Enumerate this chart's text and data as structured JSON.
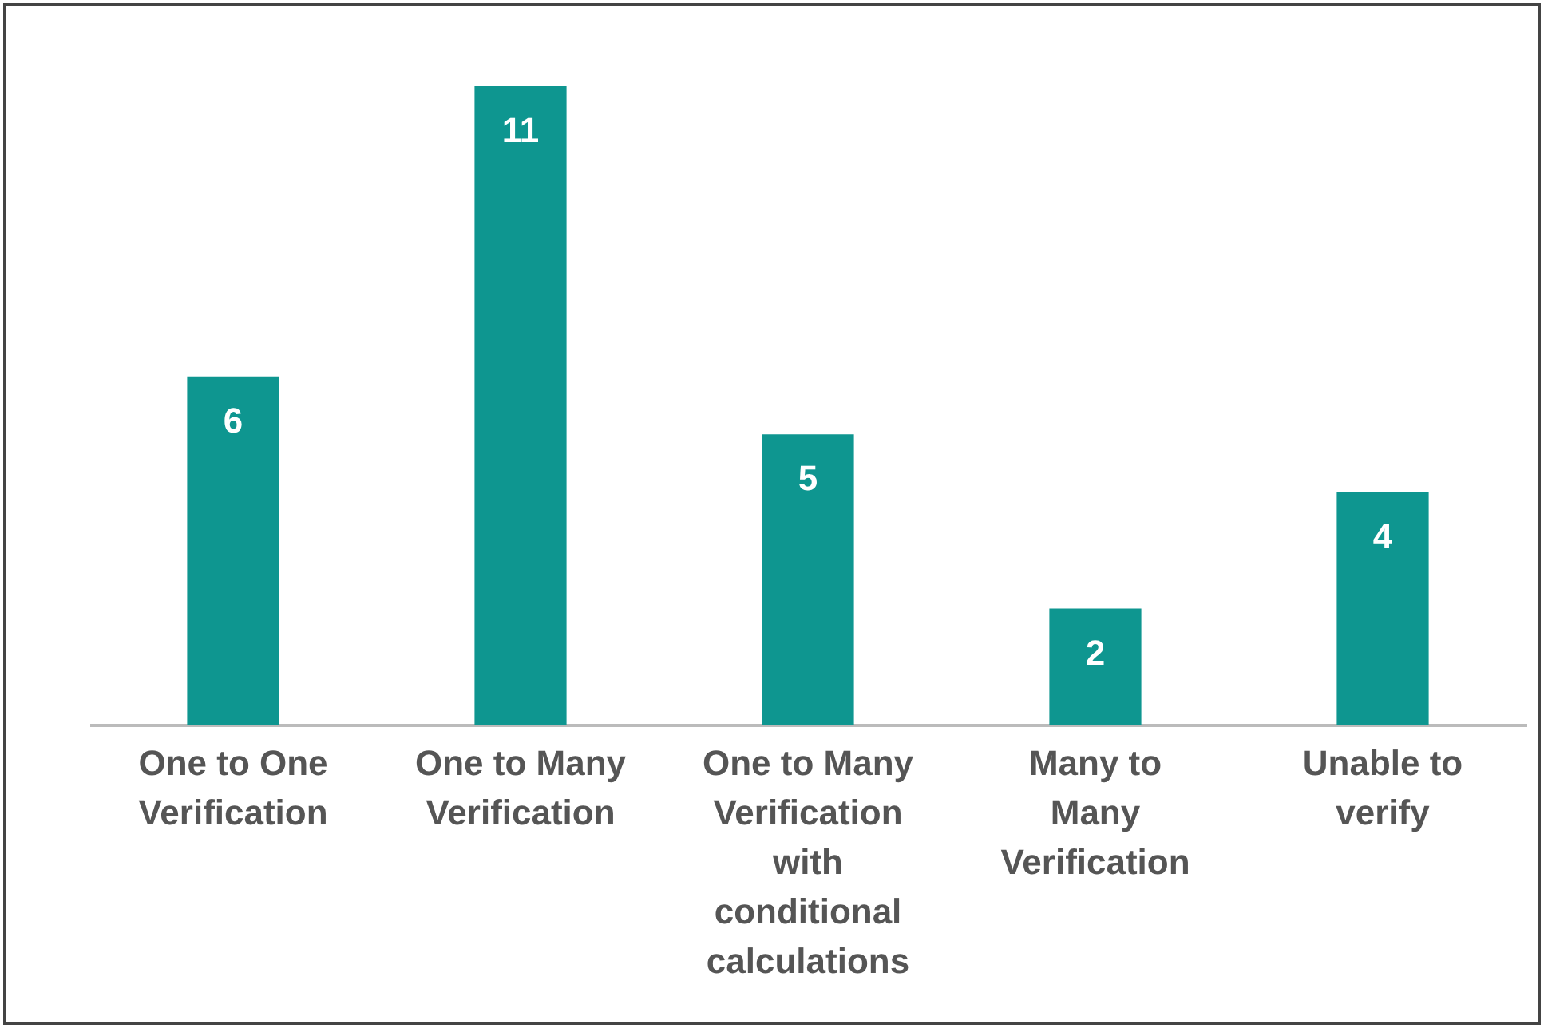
{
  "chart_data": {
    "type": "bar",
    "categories": [
      "One to One Verification",
      "One to Many Verification",
      "One to Many Verification with conditional calculations",
      "Many to Many Verification",
      "Unable to verify"
    ],
    "values": [
      6,
      11,
      5,
      2,
      4
    ],
    "color": "#0e9690",
    "data_labels": true
  }
}
